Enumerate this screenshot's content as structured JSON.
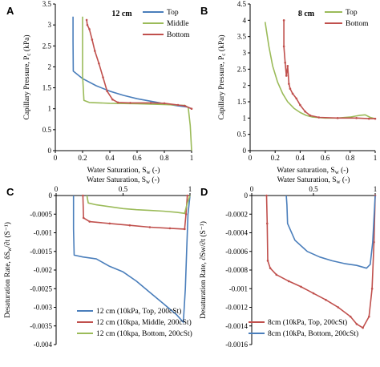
{
  "colors": {
    "blue": "#4a7ebb",
    "green": "#9bbb59",
    "red": "#c0504d"
  },
  "chart_data": [
    {
      "id": "A",
      "type": "line",
      "panel_label": "A",
      "title": "12 cm",
      "xlabel": "Water Saturation, S",
      "xlabel_sub": "w",
      "xlabel_tail": " (-)",
      "ylabel": "Capillary Pressure, P",
      "ylabel_sub": "c",
      "ylabel_tail": " (kPa)",
      "xlim": [
        0,
        1
      ],
      "ylim": [
        0,
        3.5
      ],
      "xticks": [
        "0",
        "0.2",
        "0.4",
        "0.6",
        "0.8",
        "1"
      ],
      "yticks": [
        "0",
        "0.5",
        "1",
        "1.5",
        "2",
        "2.5",
        "3",
        "3.5"
      ],
      "legend_position": "top-right",
      "series": [
        {
          "name": "Top",
          "color": "blue",
          "points": [
            [
              0.13,
              3.2
            ],
            [
              0.13,
              2.6
            ],
            [
              0.132,
              1.9
            ],
            [
              0.2,
              1.72
            ],
            [
              0.3,
              1.55
            ],
            [
              0.4,
              1.42
            ],
            [
              0.5,
              1.32
            ],
            [
              0.6,
              1.24
            ],
            [
              0.7,
              1.18
            ],
            [
              0.8,
              1.12
            ],
            [
              0.9,
              1.07
            ],
            [
              0.97,
              1.04
            ],
            [
              1.0,
              1.0
            ]
          ]
        },
        {
          "name": "Middle",
          "color": "green",
          "points": [
            [
              0.2,
              3.2
            ],
            [
              0.2,
              2.5
            ],
            [
              0.2,
              1.8
            ],
            [
              0.21,
              1.2
            ],
            [
              0.25,
              1.15
            ],
            [
              0.4,
              1.13
            ],
            [
              0.6,
              1.12
            ],
            [
              0.8,
              1.1
            ],
            [
              0.95,
              1.08
            ],
            [
              0.975,
              1.03
            ],
            [
              0.99,
              0.6
            ],
            [
              1.0,
              0.0
            ]
          ]
        },
        {
          "name": "Bottom",
          "color": "red",
          "points": [
            [
              0.23,
              3.12
            ],
            [
              0.235,
              3.0
            ],
            [
              0.25,
              2.9
            ],
            [
              0.27,
              2.65
            ],
            [
              0.29,
              2.38
            ],
            [
              0.32,
              2.08
            ],
            [
              0.35,
              1.75
            ],
            [
              0.38,
              1.42
            ],
            [
              0.42,
              1.22
            ],
            [
              0.46,
              1.15
            ],
            [
              0.55,
              1.14
            ],
            [
              0.7,
              1.14
            ],
            [
              0.8,
              1.13
            ],
            [
              0.9,
              1.09
            ],
            [
              0.95,
              1.07
            ],
            [
              1.0,
              1.0
            ]
          ]
        }
      ]
    },
    {
      "id": "B",
      "type": "line",
      "panel_label": "B",
      "title": "8 cm",
      "xlabel": "Water saturation, S",
      "xlabel_sub": "w",
      "xlabel_tail": " (-)",
      "ylabel": "Capillary Pressure, P",
      "ylabel_sub": "c",
      "ylabel_tail": " (kPa)",
      "xlim": [
        0,
        1
      ],
      "ylim": [
        0,
        4.5
      ],
      "xticks": [
        "0",
        "0.2",
        "0.4",
        "0.6",
        "0.8",
        "1"
      ],
      "yticks": [
        "0",
        "0.5",
        "1",
        "1.5",
        "2",
        "2.5",
        "3",
        "3.5",
        "4",
        "4.5"
      ],
      "legend_position": "top-right",
      "series": [
        {
          "name": "Top",
          "color": "green",
          "points": [
            [
              0.12,
              3.95
            ],
            [
              0.15,
              3.2
            ],
            [
              0.18,
              2.6
            ],
            [
              0.22,
              2.1
            ],
            [
              0.26,
              1.75
            ],
            [
              0.3,
              1.5
            ],
            [
              0.35,
              1.3
            ],
            [
              0.4,
              1.17
            ],
            [
              0.45,
              1.08
            ],
            [
              0.5,
              1.03
            ],
            [
              0.6,
              1.0
            ],
            [
              0.7,
              1.0
            ],
            [
              0.8,
              1.03
            ],
            [
              0.87,
              1.08
            ],
            [
              0.92,
              1.1
            ],
            [
              0.96,
              1.02
            ],
            [
              1.0,
              0.98
            ]
          ]
        },
        {
          "name": "Bottom",
          "color": "red",
          "points": [
            [
              0.27,
              4.0
            ],
            [
              0.27,
              3.2
            ],
            [
              0.28,
              2.7
            ],
            [
              0.29,
              2.3
            ],
            [
              0.3,
              2.6
            ],
            [
              0.31,
              2.05
            ],
            [
              0.32,
              1.9
            ],
            [
              0.34,
              1.75
            ],
            [
              0.37,
              1.6
            ],
            [
              0.4,
              1.4
            ],
            [
              0.44,
              1.2
            ],
            [
              0.48,
              1.08
            ],
            [
              0.55,
              1.02
            ],
            [
              0.7,
              1.0
            ],
            [
              0.85,
              1.0
            ],
            [
              0.95,
              0.98
            ],
            [
              1.0,
              0.98
            ]
          ]
        }
      ]
    },
    {
      "id": "C",
      "type": "line",
      "panel_label": "C",
      "xlabel": "Water Saturation, S",
      "xlabel_sub": "w",
      "xlabel_tail": " (-)",
      "ylabel": "Desaturation Rate, δS",
      "ylabel_sub": "w",
      "ylabel_tail": "/∂t (S⁻¹)",
      "xlim": [
        0,
        1
      ],
      "ylim": [
        -0.004,
        0
      ],
      "xticks": [
        "0",
        "0.5",
        "1"
      ],
      "yticks": [
        "0",
        "-0.0005",
        "-0.001",
        "-0.0015",
        "-0.002",
        "-0.0025",
        "-0.003",
        "-0.0035",
        "-0.004"
      ],
      "legend_position": "bottom-left",
      "series": [
        {
          "name": "12 cm (10kPa, Top, 200cSt)",
          "color": "blue",
          "points": [
            [
              0.13,
              0.0
            ],
            [
              0.13,
              -0.0009
            ],
            [
              0.135,
              -0.0016
            ],
            [
              0.2,
              -0.00165
            ],
            [
              0.3,
              -0.0017
            ],
            [
              0.4,
              -0.0019
            ],
            [
              0.5,
              -0.00205
            ],
            [
              0.6,
              -0.0023
            ],
            [
              0.7,
              -0.0026
            ],
            [
              0.8,
              -0.0029
            ],
            [
              0.9,
              -0.0032
            ],
            [
              0.95,
              -0.0034
            ],
            [
              0.965,
              -0.0025
            ],
            [
              0.975,
              -0.0015
            ],
            [
              0.985,
              -0.0005
            ],
            [
              1.0,
              0.0
            ]
          ]
        },
        {
          "name": "12 cm (10kpa, Middle, 200cSt)",
          "color": "red",
          "points": [
            [
              0.2,
              0.0
            ],
            [
              0.205,
              -0.0006
            ],
            [
              0.25,
              -0.0007
            ],
            [
              0.4,
              -0.00075
            ],
            [
              0.55,
              -0.0008
            ],
            [
              0.7,
              -0.00085
            ],
            [
              0.85,
              -0.00088
            ],
            [
              0.96,
              -0.0009
            ],
            [
              0.97,
              -0.0005
            ],
            [
              0.98,
              0.0
            ]
          ]
        },
        {
          "name": "12 cm (10kpa, Bottom, 200cSt)",
          "color": "green",
          "points": [
            [
              0.23,
              0.0
            ],
            [
              0.24,
              -0.0002
            ],
            [
              0.3,
              -0.00025
            ],
            [
              0.4,
              -0.0003
            ],
            [
              0.5,
              -0.00035
            ],
            [
              0.6,
              -0.00038
            ],
            [
              0.7,
              -0.0004
            ],
            [
              0.8,
              -0.00042
            ],
            [
              0.9,
              -0.00045
            ],
            [
              0.96,
              -0.00048
            ],
            [
              0.98,
              -0.0002
            ],
            [
              1.0,
              0.0
            ]
          ]
        }
      ]
    },
    {
      "id": "D",
      "type": "line",
      "panel_label": "D",
      "xlabel": "Water Saturation, S",
      "xlabel_sub": "w",
      "xlabel_tail": " (-)",
      "ylabel": "Desaturation Rate, ∂Sw/∂t (S⁻¹)",
      "xlim": [
        0,
        1
      ],
      "ylim": [
        -0.0016,
        0
      ],
      "xticks": [
        "0",
        "0.5",
        "1"
      ],
      "yticks": [
        "0",
        "-0.0002",
        "-0.0004",
        "-0.0006",
        "-0.0008",
        "-0.001",
        "-0.0012",
        "-0.0014",
        "-0.0016"
      ],
      "legend_position": "bottom-left",
      "series": [
        {
          "name": "8cm (10kPa, Top, 200cSt)",
          "color": "red",
          "points": [
            [
              0.12,
              0.0
            ],
            [
              0.125,
              -0.0003
            ],
            [
              0.13,
              -0.0007
            ],
            [
              0.15,
              -0.00078
            ],
            [
              0.2,
              -0.00085
            ],
            [
              0.3,
              -0.00092
            ],
            [
              0.4,
              -0.00098
            ],
            [
              0.5,
              -0.00105
            ],
            [
              0.6,
              -0.00112
            ],
            [
              0.7,
              -0.0012
            ],
            [
              0.8,
              -0.0013
            ],
            [
              0.85,
              -0.00138
            ],
            [
              0.9,
              -0.00142
            ],
            [
              0.95,
              -0.0013
            ],
            [
              0.975,
              -0.001
            ],
            [
              0.99,
              -0.0005
            ],
            [
              1.0,
              0.0
            ]
          ]
        },
        {
          "name": "8cm (10kPa, Bottom, 200cSt)",
          "color": "blue",
          "points": [
            [
              0.28,
              0.0
            ],
            [
              0.285,
              -0.0001
            ],
            [
              0.29,
              -0.0003
            ],
            [
              0.35,
              -0.00048
            ],
            [
              0.45,
              -0.0006
            ],
            [
              0.55,
              -0.00066
            ],
            [
              0.65,
              -0.0007
            ],
            [
              0.75,
              -0.00073
            ],
            [
              0.85,
              -0.00075
            ],
            [
              0.93,
              -0.00078
            ],
            [
              0.96,
              -0.00074
            ],
            [
              0.98,
              -0.0005
            ],
            [
              1.0,
              0.0
            ]
          ]
        }
      ]
    }
  ]
}
